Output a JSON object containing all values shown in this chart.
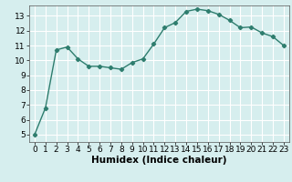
{
  "x": [
    0,
    1,
    2,
    3,
    4,
    5,
    6,
    7,
    8,
    9,
    10,
    11,
    12,
    13,
    14,
    15,
    16,
    17,
    18,
    19,
    20,
    21,
    22,
    23
  ],
  "y": [
    5.0,
    6.8,
    10.7,
    10.9,
    10.1,
    9.6,
    9.6,
    9.5,
    9.4,
    9.85,
    10.1,
    11.1,
    12.2,
    12.55,
    13.3,
    13.45,
    13.35,
    13.1,
    12.7,
    12.2,
    12.25,
    11.85,
    11.6,
    11.0
  ],
  "line_color": "#2e7d6e",
  "marker": "D",
  "marker_size": 2.2,
  "line_width": 1.0,
  "bg_color": "#d6eeee",
  "grid_color": "#ffffff",
  "xlabel": "Humidex (Indice chaleur)",
  "xlabel_fontsize": 7.5,
  "xlim": [
    -0.5,
    23.5
  ],
  "ylim": [
    4.5,
    13.7
  ],
  "yticks": [
    5,
    6,
    7,
    8,
    9,
    10,
    11,
    12,
    13
  ],
  "xticks": [
    0,
    1,
    2,
    3,
    4,
    5,
    6,
    7,
    8,
    9,
    10,
    11,
    12,
    13,
    14,
    15,
    16,
    17,
    18,
    19,
    20,
    21,
    22,
    23
  ],
  "tick_fontsize": 6.5
}
